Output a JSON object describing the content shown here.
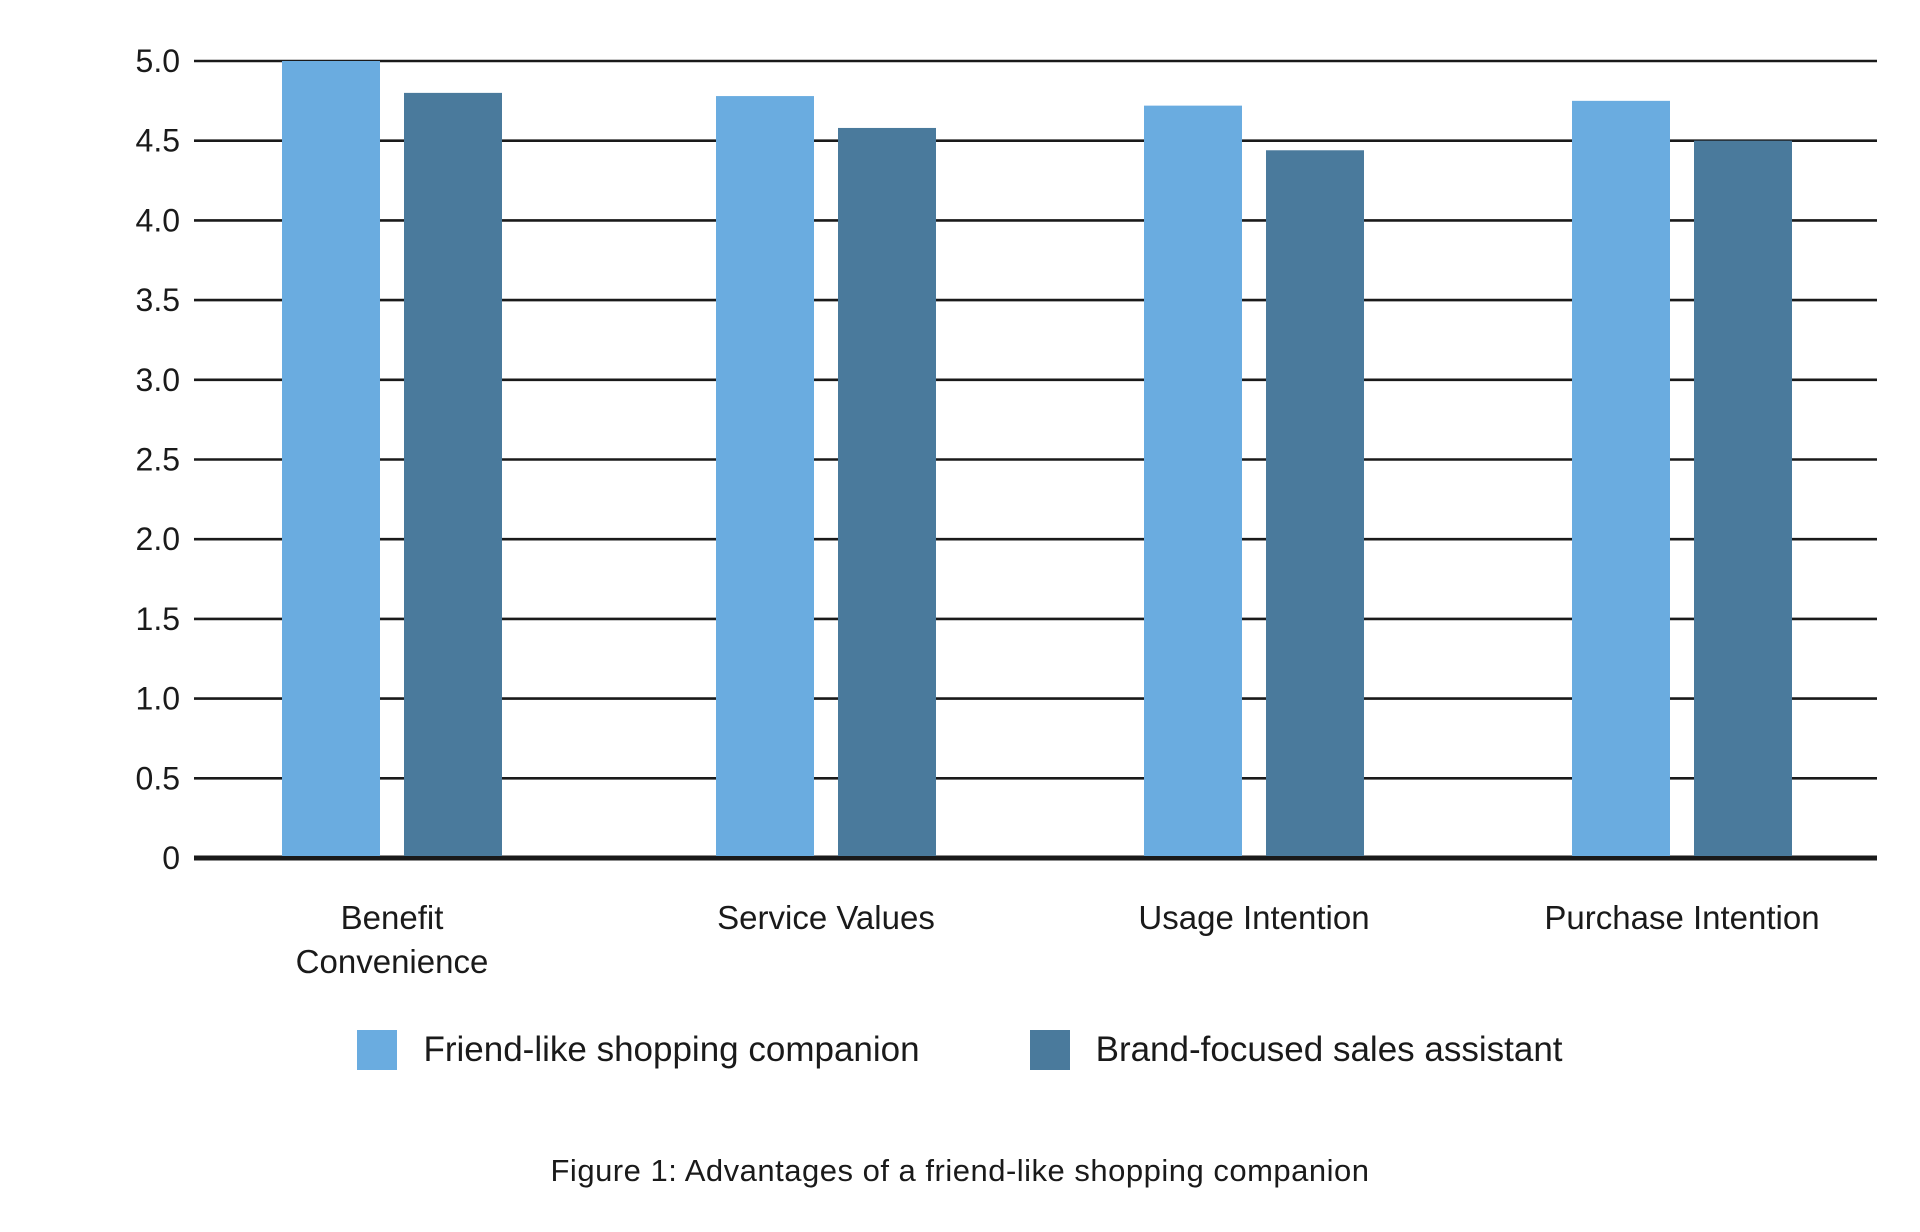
{
  "chart_data": {
    "type": "bar",
    "categories": [
      [
        "Benefit",
        "Convenience"
      ],
      [
        "Service Values"
      ],
      [
        "Usage Intention"
      ],
      [
        "Purchase Intention"
      ]
    ],
    "series": [
      {
        "name": "Friend-like shopping companion",
        "color": "#6aace0",
        "values": [
          5.0,
          4.78,
          4.72,
          4.75
        ]
      },
      {
        "name": "Brand-focused sales assistant",
        "color": "#4a7a9c",
        "values": [
          4.8,
          4.58,
          4.44,
          4.5
        ]
      }
    ],
    "yticks": [
      "0",
      "0.5",
      "1.0",
      "1.5",
      "2.0",
      "2.5",
      "3.0",
      "3.5",
      "4.0",
      "4.5",
      "5.0"
    ],
    "ylim": [
      0,
      5
    ],
    "grid": true,
    "legend_position": "bottom",
    "caption": "Figure 1: Advantages of a friend-like shopping companion"
  }
}
